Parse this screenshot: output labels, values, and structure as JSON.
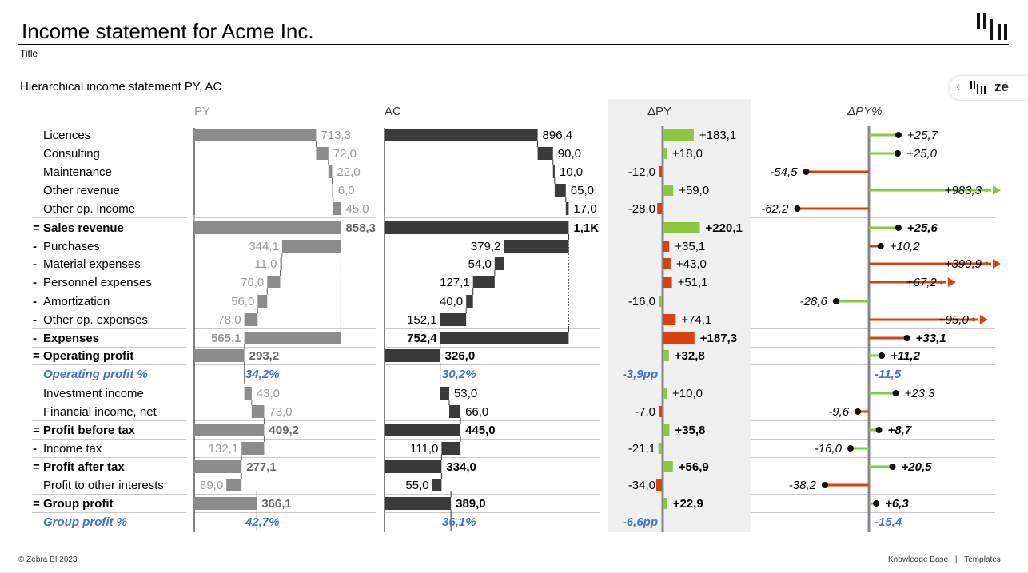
{
  "header": {
    "title": "Income statement for Acme Inc.",
    "subtitle": "Title",
    "chart_heading": "Hierarchical income statement PY, AC"
  },
  "nav": {
    "brand": "ze",
    "chevron": "‹"
  },
  "footer": {
    "copyright": "© Zebra BI 2023",
    "knowledge_base": "Knowledge Base",
    "separator": "|",
    "templates": "Templates"
  },
  "colors": {
    "py": "#8c8c8c",
    "ac": "#3a3a3a",
    "positive": "#8dc63f",
    "negative": "#d9410f",
    "percent_text": "#4472c4",
    "delta_background": "#f0f0f0",
    "axis": "#888888"
  },
  "chart_data": {
    "type": "table",
    "columns": {
      "py": "PY",
      "ac": "AC",
      "delta": "ΔPY",
      "delta_pct": "ΔPY%"
    },
    "rows": [
      {
        "label": "Licences",
        "kind": "item",
        "py": 713.3,
        "ac": 896.4,
        "py_text": "713,3",
        "ac_text": "896,4",
        "delta": 183.1,
        "delta_text": "+183,1",
        "delta_good": true,
        "pct": 25.7,
        "pct_text": "+25,7",
        "pct_good": true
      },
      {
        "label": "Consulting",
        "kind": "item",
        "py": 72.0,
        "ac": 90.0,
        "py_text": "72,0",
        "ac_text": "90,0",
        "delta": 18.0,
        "delta_text": "+18,0",
        "delta_good": true,
        "pct": 25.0,
        "pct_text": "+25,0",
        "pct_good": true
      },
      {
        "label": "Maintenance",
        "kind": "item",
        "py": 22.0,
        "ac": 10.0,
        "py_text": "22,0",
        "ac_text": "10,0",
        "delta": -12.0,
        "delta_text": "-12,0",
        "delta_good": false,
        "pct": -54.5,
        "pct_text": "-54,5",
        "pct_good": false
      },
      {
        "label": "Other revenue",
        "kind": "item",
        "py": 6.0,
        "ac": 65.0,
        "py_text": "6,0",
        "ac_text": "65,0",
        "delta": 59.0,
        "delta_text": "+59,0",
        "delta_good": true,
        "pct": 983.3,
        "pct_text": "+983,3",
        "pct_good": true,
        "overflow": true
      },
      {
        "label": "Other op. income",
        "kind": "item",
        "py": 45.0,
        "ac": 17.0,
        "py_text": "45,0",
        "ac_text": "17,0",
        "delta": -28.0,
        "delta_text": "-28,0",
        "delta_good": false,
        "pct": -62.2,
        "pct_text": "-62,2",
        "pct_good": false
      },
      {
        "label": "Sales revenue",
        "prefix": "=",
        "kind": "total",
        "py": 858.3,
        "ac": 1078.4,
        "py_text": "858,3",
        "ac_text": "1,1K",
        "delta": 220.1,
        "delta_text": "+220,1",
        "delta_good": true,
        "pct": 25.6,
        "pct_text": "+25,6",
        "pct_good": true
      },
      {
        "label": "Purchases",
        "prefix": "-",
        "kind": "item",
        "py": 344.1,
        "ac": 379.2,
        "py_text": "344,1",
        "ac_text": "379,2",
        "delta": 35.1,
        "delta_text": "+35,1",
        "delta_good": false,
        "pct": 10.2,
        "pct_text": "+10,2",
        "pct_good": false
      },
      {
        "label": "Material expenses",
        "prefix": "-",
        "kind": "item",
        "py": 11.0,
        "ac": 54.0,
        "py_text": "11,0",
        "ac_text": "54,0",
        "delta": 43.0,
        "delta_text": "+43,0",
        "delta_good": false,
        "pct": 390.9,
        "pct_text": "+390,9",
        "pct_good": false,
        "overflow": true
      },
      {
        "label": "Personnel expenses",
        "prefix": "-",
        "kind": "item",
        "py": 76.0,
        "ac": 127.1,
        "py_text": "76,0",
        "ac_text": "127,1",
        "delta": 51.1,
        "delta_text": "+51,1",
        "delta_good": false,
        "pct": 67.2,
        "pct_text": "+67,2",
        "pct_good": false,
        "overflow": true
      },
      {
        "label": "Amortization",
        "prefix": "-",
        "kind": "item",
        "py": 56.0,
        "ac": 40.0,
        "py_text": "56,0",
        "ac_text": "40,0",
        "delta": -16.0,
        "delta_text": "-16,0",
        "delta_good": true,
        "pct": -28.6,
        "pct_text": "-28,6",
        "pct_good": true
      },
      {
        "label": "Other op. expenses",
        "prefix": "-",
        "kind": "item",
        "py": 78.0,
        "ac": 152.1,
        "py_text": "78,0",
        "ac_text": "152,1",
        "delta": 74.1,
        "delta_text": "+74,1",
        "delta_good": false,
        "pct": 95.0,
        "pct_text": "+95,0",
        "pct_good": false,
        "overflow": true
      },
      {
        "label": "Expenses",
        "prefix": "-",
        "kind": "total",
        "py": 565.1,
        "ac": 752.4,
        "py_text": "565,1",
        "ac_text": "752,4",
        "delta": 187.3,
        "delta_text": "+187,3",
        "delta_good": false,
        "pct": 33.1,
        "pct_text": "+33,1",
        "pct_good": false
      },
      {
        "label": "Operating profit",
        "prefix": "=",
        "kind": "result",
        "py": 293.2,
        "ac": 326.0,
        "py_text": "293,2",
        "ac_text": "326,0",
        "delta": 32.8,
        "delta_text": "+32,8",
        "delta_good": true,
        "pct": 11.2,
        "pct_text": "+11,2",
        "pct_good": true
      },
      {
        "label": "Operating profit %",
        "kind": "percent",
        "py_text": "34,2%",
        "ac_text": "30,2%",
        "delta_text": "-3,9pp",
        "pct_text": "-11,5"
      },
      {
        "label": "Investment income",
        "kind": "item",
        "py": 43.0,
        "ac": 53.0,
        "py_text": "43,0",
        "ac_text": "53,0",
        "delta": 10.0,
        "delta_text": "+10,0",
        "delta_good": true,
        "pct": 23.3,
        "pct_text": "+23,3",
        "pct_good": true
      },
      {
        "label": "Financial income, net",
        "kind": "item",
        "py": 73.0,
        "ac": 66.0,
        "py_text": "73,0",
        "ac_text": "66,0",
        "delta": -7.0,
        "delta_text": "-7,0",
        "delta_good": false,
        "pct": -9.6,
        "pct_text": "-9,6",
        "pct_good": false
      },
      {
        "label": "Profit before tax",
        "prefix": "=",
        "kind": "result",
        "py": 409.2,
        "ac": 445.0,
        "py_text": "409,2",
        "ac_text": "445,0",
        "delta": 35.8,
        "delta_text": "+35,8",
        "delta_good": true,
        "pct": 8.7,
        "pct_text": "+8,7",
        "pct_good": true
      },
      {
        "label": "Income tax",
        "prefix": "-",
        "kind": "item",
        "py": 132.1,
        "ac": 111.0,
        "py_text": "132,1",
        "ac_text": "111,0",
        "delta": -21.1,
        "delta_text": "-21,1",
        "delta_good": true,
        "pct": -16.0,
        "pct_text": "-16,0",
        "pct_good": true
      },
      {
        "label": "Profit after tax",
        "prefix": "=",
        "kind": "result",
        "py": 277.1,
        "ac": 334.0,
        "py_text": "277,1",
        "ac_text": "334,0",
        "delta": 56.9,
        "delta_text": "+56,9",
        "delta_good": true,
        "pct": 20.5,
        "pct_text": "+20,5",
        "pct_good": true
      },
      {
        "label": "Profit to other interests",
        "kind": "item",
        "py": 89.0,
        "ac": 55.0,
        "py_text": "89,0",
        "ac_text": "55,0",
        "delta": -34.0,
        "delta_text": "-34,0",
        "delta_good": false,
        "pct": -38.2,
        "pct_text": "-38,2",
        "pct_good": false
      },
      {
        "label": "Group profit",
        "prefix": "=",
        "kind": "result",
        "py": 366.1,
        "ac": 389.0,
        "py_text": "366,1",
        "ac_text": "389,0",
        "delta": 22.9,
        "delta_text": "+22,9",
        "delta_good": true,
        "pct": 6.3,
        "pct_text": "+6,3",
        "pct_good": true
      },
      {
        "label": "Group profit %",
        "kind": "percent",
        "py_text": "42,7%",
        "ac_text": "36,1%",
        "delta_text": "-6,6pp",
        "pct_text": "-15,4"
      }
    ]
  }
}
